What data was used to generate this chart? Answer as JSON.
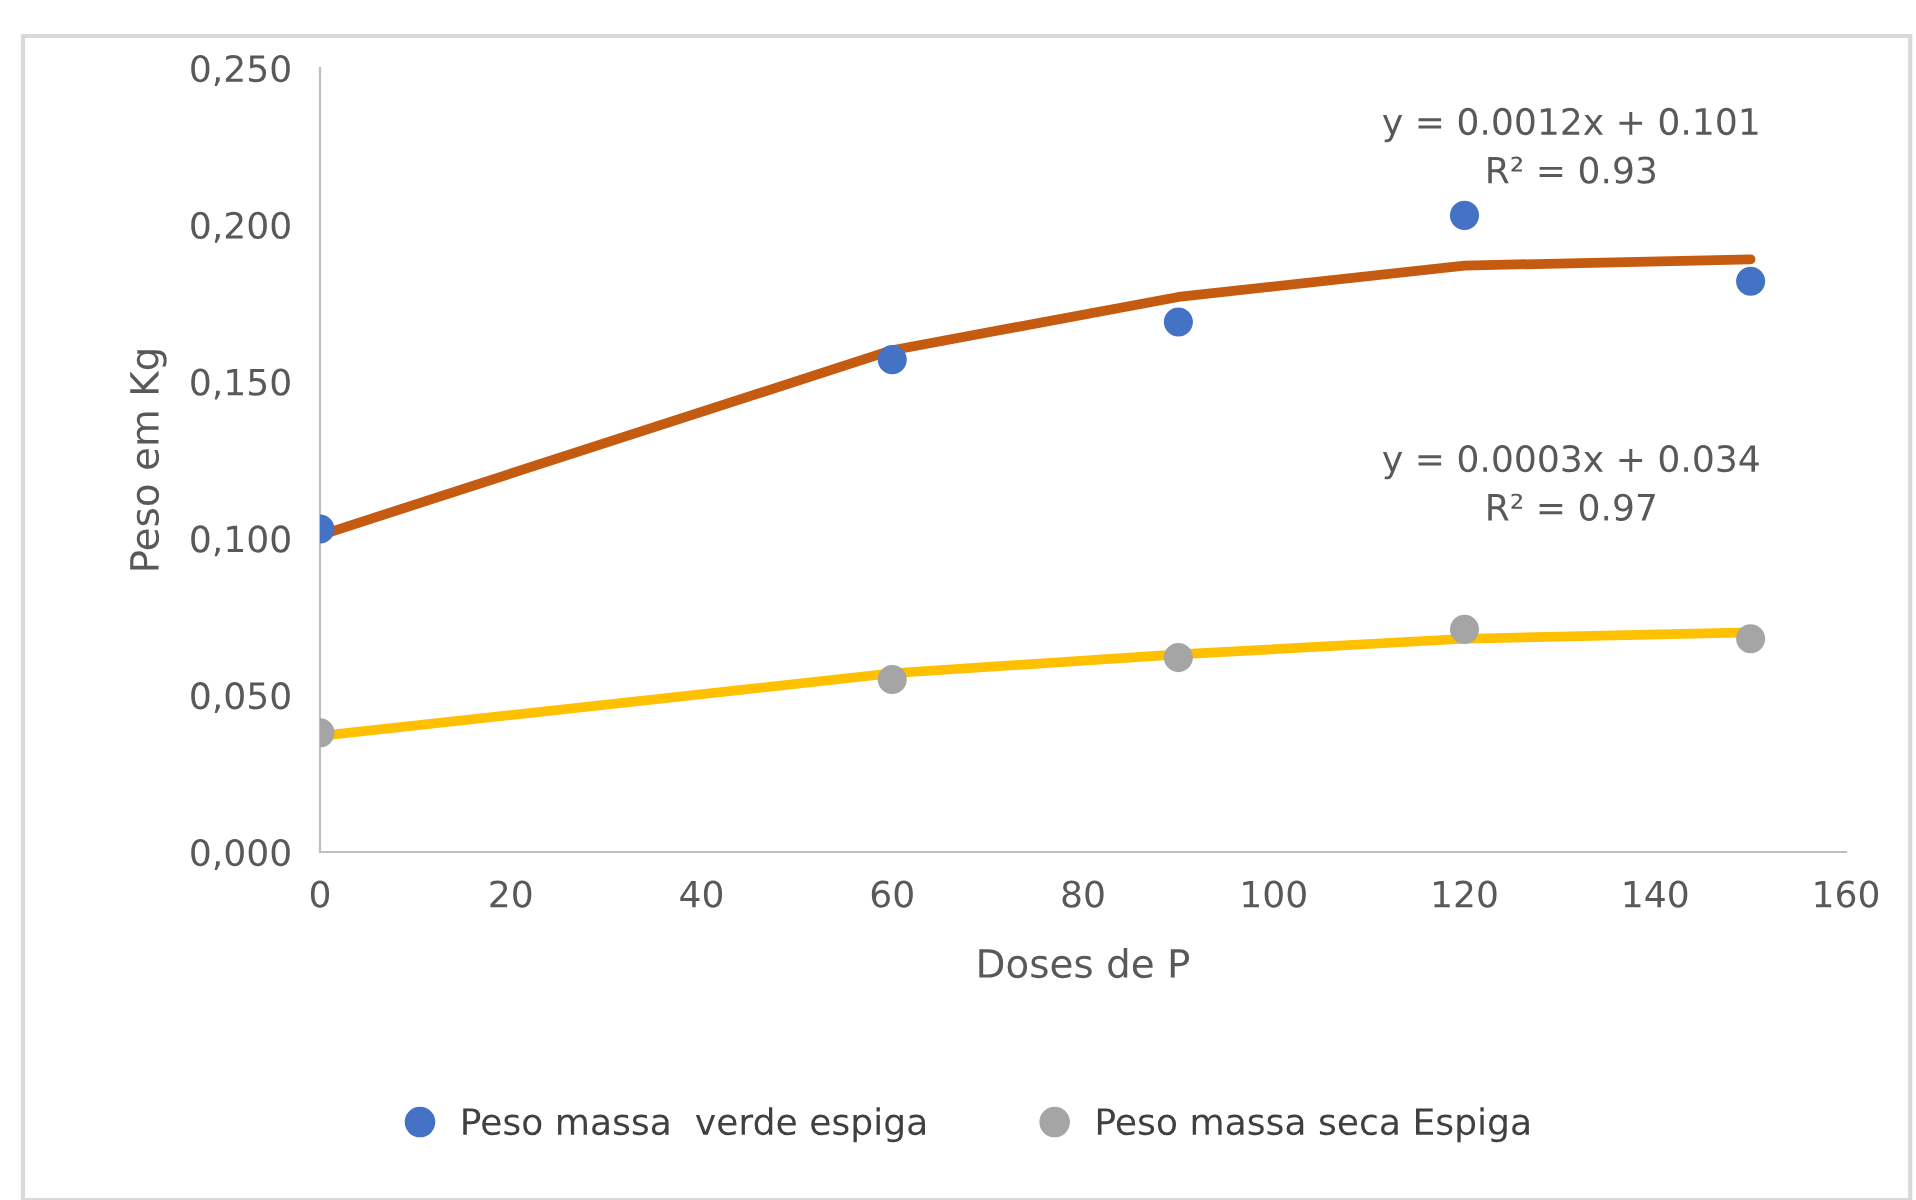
{
  "chart_data": {
    "type": "scatter",
    "xlabel": "Doses de P",
    "ylabel": "Peso em Kg",
    "x": [
      0,
      60,
      90,
      120,
      150
    ],
    "series": [
      {
        "name": "Peso massa  verde espiga",
        "color": "#4472c4",
        "values": [
          0.103,
          0.157,
          0.169,
          0.203,
          0.182
        ]
      },
      {
        "name": "Peso massa seca Espiga",
        "color": "#a5a5a5",
        "values": [
          0.038,
          0.055,
          0.062,
          0.071,
          0.068
        ]
      },
      {
        "type": "line",
        "marker": "none",
        "color": "#c55a11",
        "values": [
          0.101,
          0.16,
          0.177,
          0.187,
          0.189
        ]
      },
      {
        "type": "line",
        "marker": "none",
        "color": "#ffc000",
        "values": [
          0.037,
          0.057,
          0.063,
          0.068,
          0.07
        ]
      }
    ],
    "annotations": [
      "y = 0.0012x + 0.101\nR² = 0.93",
      "y = 0.0003x + 0.034\nR² = 0.97"
    ],
    "xlim": [
      0,
      160
    ],
    "xticks": [
      0,
      20,
      40,
      60,
      80,
      100,
      120,
      140,
      160
    ],
    "ylim": [
      0,
      0.25
    ],
    "yticks": [
      {
        "value": 0,
        "label": "0,000"
      },
      {
        "value": 0.05,
        "label": "0,050"
      },
      {
        "value": 0.1,
        "label": "0,100"
      },
      {
        "value": 0.15,
        "label": "0,150"
      },
      {
        "value": 0.2,
        "label": "0,200"
      },
      {
        "value": 0.25,
        "label": "0,250"
      }
    ],
    "marker": "circle",
    "legend": "bottom",
    "grid": false
  }
}
